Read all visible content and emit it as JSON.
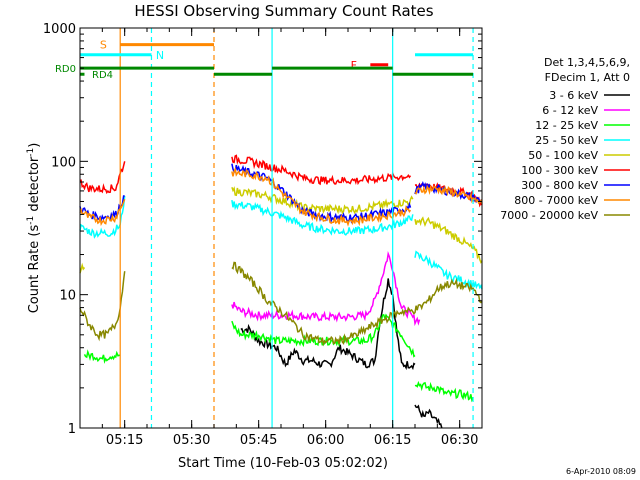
{
  "chart_data": {
    "type": "line",
    "title": "HESSI Observing Summary Count Rates",
    "xlabel": "Start Time (10-Feb-03 05:02:02)",
    "ylabel_main": "Count Rate (s",
    "ylabel_sup1": "-1",
    "ylabel_mid": " detector",
    "ylabel_sup2": "-1",
    "ylabel_end": ")",
    "yscale": "log",
    "ylim": [
      1,
      1000
    ],
    "xlim_minutes": [
      0,
      90
    ],
    "y_ticks": [
      {
        "value": 1,
        "label": "1"
      },
      {
        "value": 10,
        "label": "10"
      },
      {
        "value": 100,
        "label": "100"
      },
      {
        "value": 1000,
        "label": "1000"
      }
    ],
    "x_ticks": [
      {
        "minutes": 10,
        "label": "05:15"
      },
      {
        "minutes": 25,
        "label": "05:30"
      },
      {
        "minutes": 40,
        "label": "05:45"
      },
      {
        "minutes": 55,
        "label": "06:00"
      },
      {
        "minutes": 70,
        "label": "06:15"
      },
      {
        "minutes": 85,
        "label": "06:30"
      }
    ],
    "legend_header": [
      "Det 1,3,4,5,6,9,",
      "FDecim 1, Att 0"
    ],
    "legend_position": "right",
    "series": [
      {
        "name": "3 - 6 keV",
        "color": "#000000",
        "segments": [
          [
            [
              36,
              5.5
            ],
            [
              38,
              5.5
            ],
            [
              40,
              4.5
            ],
            [
              44,
              4
            ],
            [
              46,
              3
            ],
            [
              48,
              3.8
            ],
            [
              50,
              3.2
            ],
            [
              52,
              3.2
            ],
            [
              54,
              3
            ],
            [
              56,
              3
            ],
            [
              58,
              4
            ],
            [
              61,
              3.5
            ],
            [
              64,
              3
            ],
            [
              66,
              3.2
            ],
            [
              67,
              6
            ],
            [
              68,
              9
            ],
            [
              69,
              13
            ],
            [
              70,
              10
            ],
            [
              71,
              5
            ],
            [
              72,
              3
            ],
            [
              75,
              3
            ]
          ],
          [
            [
              75,
              1.5
            ],
            [
              77,
              1.2
            ],
            [
              78,
              1.3
            ],
            [
              80,
              1.1
            ],
            [
              81,
              1.0
            ]
          ]
        ]
      },
      {
        "name": "6 - 12 keV",
        "color": "#ff00ff",
        "segments": [
          [
            [
              34,
              8.5
            ],
            [
              36,
              7.5
            ],
            [
              40,
              7
            ],
            [
              44,
              7
            ],
            [
              48,
              7
            ],
            [
              52,
              6.8
            ],
            [
              56,
              6.8
            ],
            [
              60,
              6.8
            ],
            [
              64,
              7
            ],
            [
              66,
              9
            ],
            [
              68,
              15
            ],
            [
              69,
              20
            ],
            [
              70,
              16
            ],
            [
              71,
              11
            ],
            [
              72,
              8
            ],
            [
              75,
              6.5
            ],
            [
              76,
              6.5
            ]
          ]
        ]
      },
      {
        "name": "12 - 25 keV",
        "color": "#00ff00",
        "segments": [
          [
            [
              1,
              3.5
            ],
            [
              3,
              3.5
            ],
            [
              5,
              3.3
            ],
            [
              7,
              3.5
            ],
            [
              9,
              3.5
            ]
          ],
          [
            [
              34,
              6
            ],
            [
              36,
              5
            ],
            [
              40,
              5
            ],
            [
              44,
              4.5
            ],
            [
              48,
              4.5
            ],
            [
              52,
              4.5
            ],
            [
              56,
              4.5
            ],
            [
              60,
              4.5
            ],
            [
              64,
              4.5
            ],
            [
              66,
              5
            ],
            [
              68,
              7
            ],
            [
              70,
              6
            ],
            [
              72,
              5
            ],
            [
              75,
              3.5
            ]
          ],
          [
            [
              75,
              2.2
            ],
            [
              78,
              2
            ],
            [
              80,
              2
            ],
            [
              82,
              1.8
            ],
            [
              85,
              1.8
            ],
            [
              88,
              1.7
            ]
          ]
        ]
      },
      {
        "name": "25 - 50 keV",
        "color": "#00ffff",
        "segments": [
          [
            [
              0,
              32
            ],
            [
              3,
              29
            ],
            [
              7,
              29
            ],
            [
              9,
              33
            ],
            [
              10,
              55
            ]
          ],
          [
            [
              34,
              48
            ],
            [
              38,
              46
            ],
            [
              42,
              42
            ],
            [
              46,
              38
            ],
            [
              50,
              33
            ],
            [
              54,
              31
            ],
            [
              58,
              30
            ],
            [
              62,
              30
            ],
            [
              66,
              31
            ],
            [
              70,
              33
            ],
            [
              72,
              35
            ],
            [
              74,
              37
            ],
            [
              74.5,
              40
            ]
          ],
          [
            [
              75,
              20
            ],
            [
              78,
              18
            ],
            [
              82,
              14
            ],
            [
              85,
              13
            ],
            [
              88,
              12
            ],
            [
              90,
              11
            ]
          ]
        ]
      },
      {
        "name": "50 - 100 keV",
        "color": "#cccc00",
        "segments": [
          [
            [
              0,
              15
            ],
            [
              1,
              16
            ]
          ],
          [
            [
              34,
              60
            ],
            [
              38,
              58
            ],
            [
              42,
              55
            ],
            [
              46,
              50
            ],
            [
              50,
              45
            ],
            [
              54,
              44
            ],
            [
              58,
              44
            ],
            [
              62,
              44
            ],
            [
              66,
              46
            ],
            [
              70,
              48
            ],
            [
              74,
              50
            ],
            [
              74.5,
              52
            ]
          ],
          [
            [
              75,
              36
            ],
            [
              78,
              35
            ],
            [
              82,
              30
            ],
            [
              85,
              26
            ],
            [
              88,
              22
            ],
            [
              90,
              18
            ]
          ]
        ]
      },
      {
        "name": "100 - 300 keV",
        "color": "#ff0000",
        "segments": [
          [
            [
              0,
              70
            ],
            [
              2,
              63
            ],
            [
              5,
              62
            ],
            [
              8,
              63
            ],
            [
              9,
              80
            ],
            [
              10,
              100
            ]
          ],
          [
            [
              34,
              105
            ],
            [
              38,
              100
            ],
            [
              42,
              92
            ],
            [
              46,
              85
            ],
            [
              50,
              75
            ],
            [
              54,
              72
            ],
            [
              58,
              72
            ],
            [
              62,
              72
            ],
            [
              66,
              74
            ],
            [
              70,
              76
            ],
            [
              74,
              78
            ]
          ],
          [
            [
              75,
              62
            ],
            [
              77,
              68
            ],
            [
              80,
              63
            ],
            [
              84,
              60
            ],
            [
              88,
              56
            ],
            [
              90,
              47
            ]
          ]
        ]
      },
      {
        "name": "300 - 800 keV",
        "color": "#0000ff",
        "segments": [
          [
            [
              0,
              45
            ],
            [
              2,
              40
            ],
            [
              5,
              38
            ],
            [
              8,
              40
            ],
            [
              10,
              55
            ]
          ],
          [
            [
              34,
              90
            ],
            [
              38,
              82
            ],
            [
              42,
              75
            ],
            [
              46,
              58
            ],
            [
              50,
              42
            ],
            [
              54,
              39
            ],
            [
              58,
              38
            ],
            [
              62,
              38
            ],
            [
              66,
              40
            ],
            [
              70,
              42
            ],
            [
              74,
              45
            ]
          ],
          [
            [
              75,
              60
            ],
            [
              77,
              65
            ],
            [
              80,
              62
            ],
            [
              84,
              58
            ],
            [
              88,
              54
            ],
            [
              90,
              49
            ]
          ]
        ]
      },
      {
        "name": "800 - 7000 keV",
        "color": "#ff8800",
        "segments": [
          [
            [
              0,
              43
            ],
            [
              2,
              38
            ],
            [
              5,
              36
            ],
            [
              8,
              38
            ],
            [
              10,
              52
            ]
          ],
          [
            [
              34,
              82
            ],
            [
              38,
              80
            ],
            [
              42,
              75
            ],
            [
              46,
              55
            ],
            [
              50,
              42
            ],
            [
              54,
              38
            ],
            [
              58,
              36
            ],
            [
              62,
              36
            ],
            [
              66,
              38
            ],
            [
              70,
              40
            ],
            [
              74,
              43
            ]
          ],
          [
            [
              75,
              58
            ],
            [
              77,
              62
            ],
            [
              80,
              62
            ],
            [
              84,
              58
            ],
            [
              88,
              52
            ],
            [
              90,
              48
            ]
          ]
        ]
      },
      {
        "name": "7000 - 20000 keV",
        "color": "#888800",
        "segments": [
          [
            [
              0,
              8
            ],
            [
              2,
              6
            ],
            [
              4,
              5
            ],
            [
              6,
              5
            ],
            [
              8,
              6
            ],
            [
              9,
              8
            ],
            [
              10,
              15
            ]
          ],
          [
            [
              34,
              17
            ],
            [
              36,
              15
            ],
            [
              38,
              13
            ],
            [
              40,
              11
            ],
            [
              42,
              9
            ],
            [
              44,
              8
            ],
            [
              46,
              7
            ],
            [
              48,
              6
            ],
            [
              50,
              5
            ],
            [
              54,
              4.5
            ],
            [
              58,
              4.5
            ],
            [
              62,
              5
            ],
            [
              66,
              6
            ],
            [
              70,
              7
            ],
            [
              72,
              7.5
            ],
            [
              74,
              7.5
            ],
            [
              76,
              8
            ],
            [
              78,
              9
            ],
            [
              80,
              11
            ],
            [
              82,
              12
            ],
            [
              84,
              12
            ],
            [
              86,
              11.5
            ],
            [
              88,
              11
            ],
            [
              90,
              9
            ]
          ]
        ]
      }
    ],
    "vertical_lines": [
      {
        "minutes": 9,
        "color": "#ff8800",
        "style": "solid"
      },
      {
        "minutes": 16,
        "color": "#00ffff",
        "style": "dashed"
      },
      {
        "minutes": 30,
        "color": "#ff8800",
        "style": "dashed"
      },
      {
        "minutes": 43,
        "color": "#00ffff",
        "style": "solid"
      },
      {
        "minutes": 70,
        "color": "#00ffff",
        "style": "solid"
      },
      {
        "minutes": 88,
        "color": "#00ffff",
        "style": "dashed"
      }
    ],
    "flag_bars": [
      {
        "label": "S",
        "color": "#ff8800",
        "y": 750,
        "start": 9,
        "end": 30,
        "label_side": "left",
        "label_at": 6
      },
      {
        "label": "N",
        "color": "#00ffff",
        "y": 630,
        "start": 0,
        "end": 16,
        "label_side": "right",
        "label_at": 17
      },
      {
        "label": "F",
        "color": "#ff0000",
        "y": 530,
        "start": 65,
        "end": 69,
        "label_side": "left",
        "label_at": 62
      },
      {
        "label": "",
        "color": "#00ffff",
        "y": 630,
        "start": 75,
        "end": 88,
        "label_side": "none",
        "label_at": 0
      }
    ],
    "state_bars": [
      {
        "label": "RD0",
        "color": "#008800",
        "y": 500,
        "segments": [
          [
            0,
            30
          ],
          [
            30,
            43
          ],
          [
            43,
            70
          ],
          [
            70,
            88
          ]
        ],
        "levels": [
          500,
          450,
          500,
          450
        ]
      },
      {
        "label": "RD4",
        "color": "#008800",
        "y": 450,
        "segments": [
          [
            0,
            1
          ]
        ],
        "levels": [
          450
        ]
      }
    ],
    "timestamp": "6-Apr-2010 08:09"
  }
}
